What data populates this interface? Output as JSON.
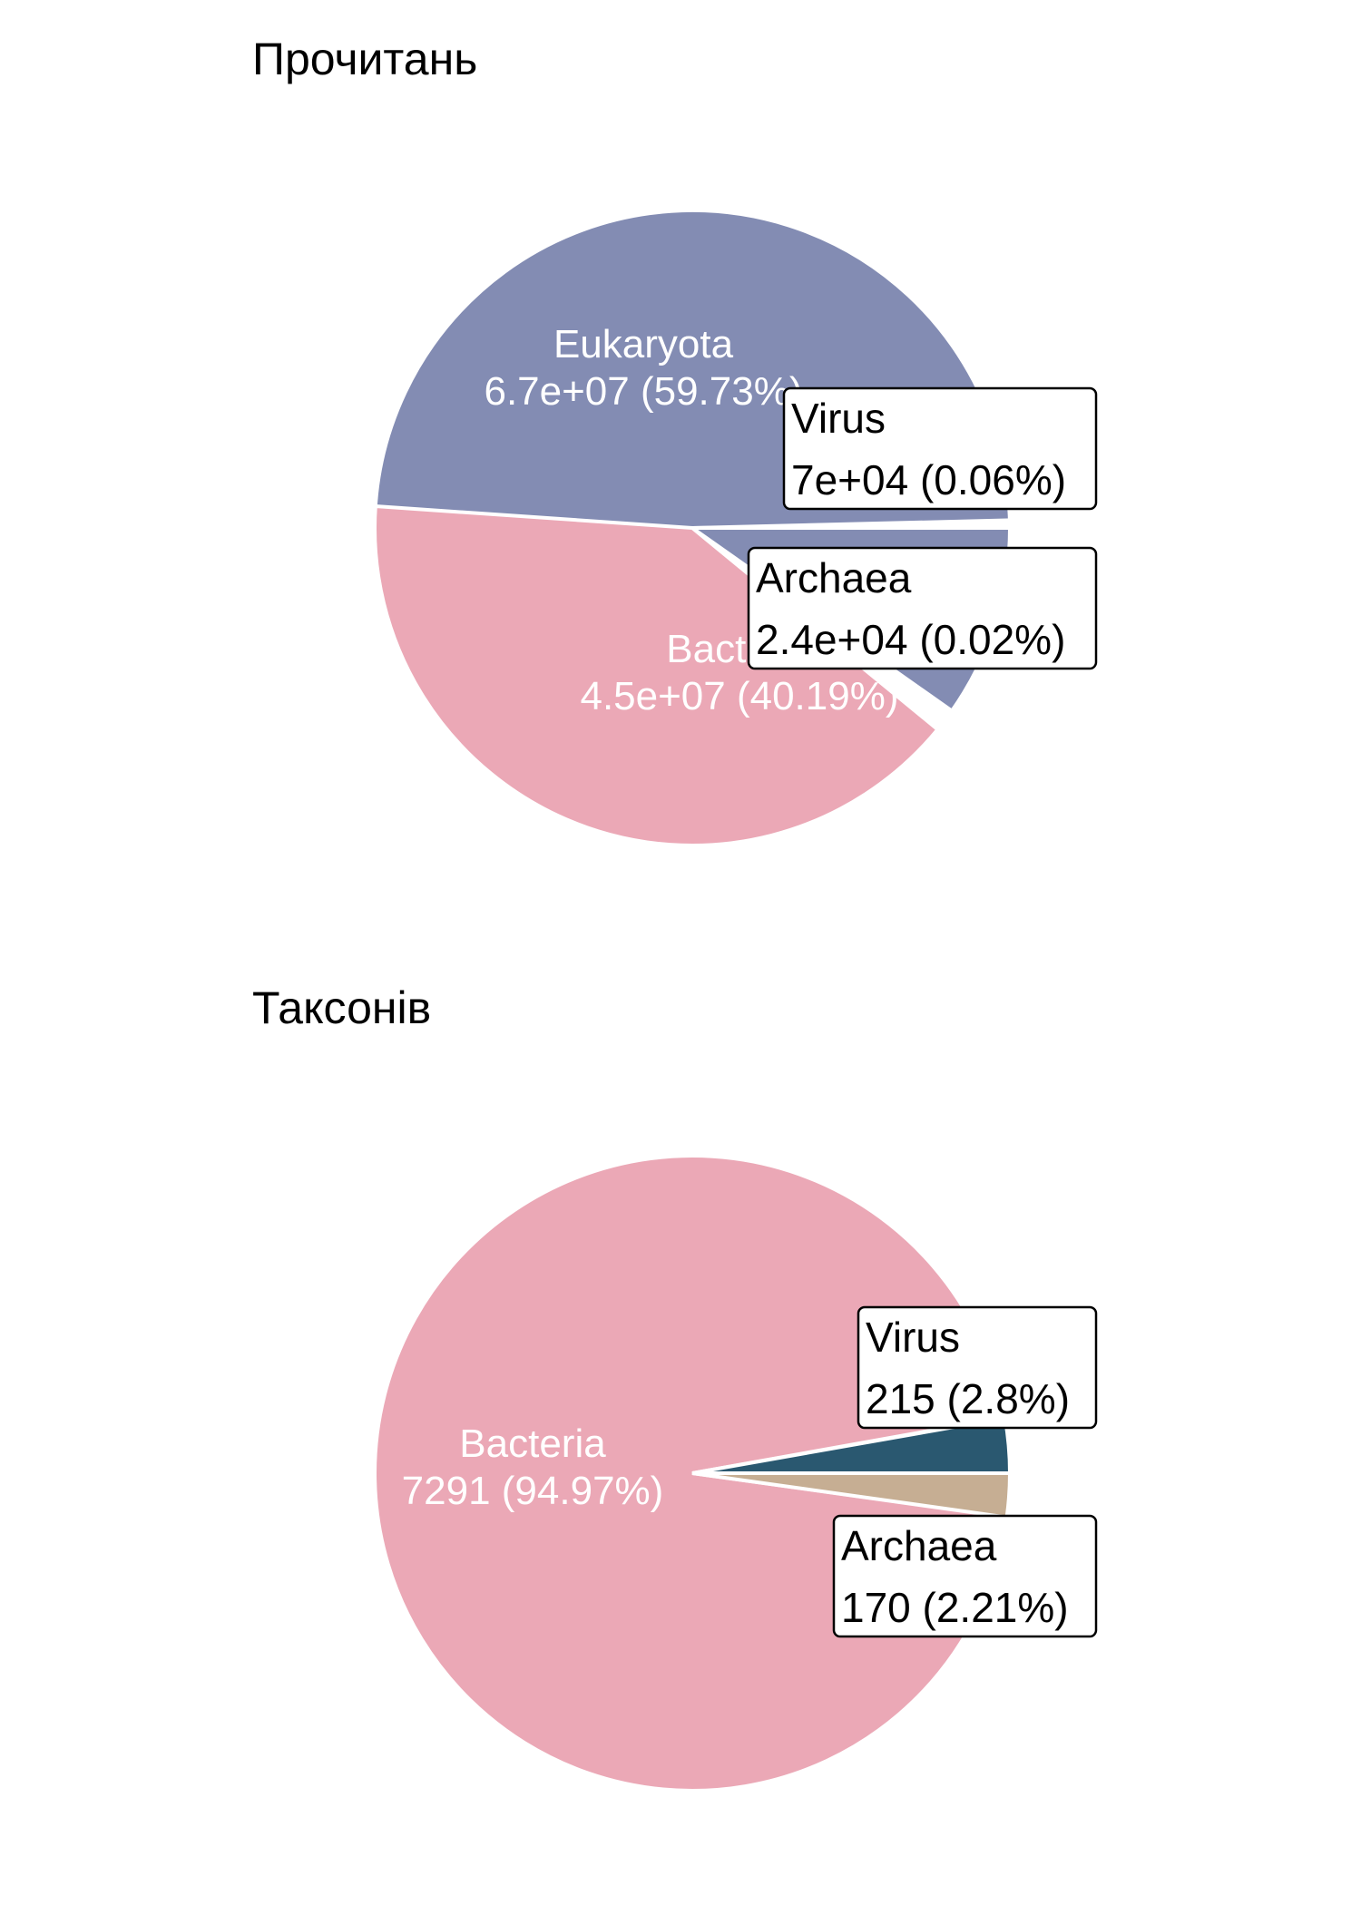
{
  "chart_data": [
    {
      "type": "pie",
      "title": "Прочитань",
      "slices": [
        {
          "name": "Eukaryota",
          "value": 67000000,
          "value_label": "6.7e+07 (59.73%)",
          "percent": 59.73,
          "color": "#838cb3",
          "label_style": "inside"
        },
        {
          "name": "Bacteria",
          "value": 45000000,
          "value_label": "4.5e+07 (40.19%)",
          "percent": 40.19,
          "color": "#eba8b6",
          "label_style": "inside"
        },
        {
          "name": "Virus",
          "value": 70000,
          "value_label": "7e+04 (0.06%)",
          "percent": 0.06,
          "color": "#2a5870",
          "label_style": "box"
        },
        {
          "name": "Archaea",
          "value": 24000,
          "value_label": "2.4e+04 (0.02%)",
          "percent": 0.02,
          "color": "#c6ae93",
          "label_style": "box"
        }
      ]
    },
    {
      "type": "pie",
      "title": "Таксонів",
      "slices": [
        {
          "name": "Bacteria",
          "value": 7291,
          "value_label": "7291 (94.97%)",
          "percent": 94.97,
          "color": "#eba8b6",
          "label_style": "inside"
        },
        {
          "name": "Virus",
          "value": 215,
          "value_label": "215 (2.8%)",
          "percent": 2.8,
          "color": "#2a5870",
          "label_style": "box"
        },
        {
          "name": "Archaea",
          "value": 170,
          "value_label": "170 (2.21%)",
          "percent": 2.21,
          "color": "#c6ae93",
          "label_style": "box"
        }
      ]
    }
  ]
}
